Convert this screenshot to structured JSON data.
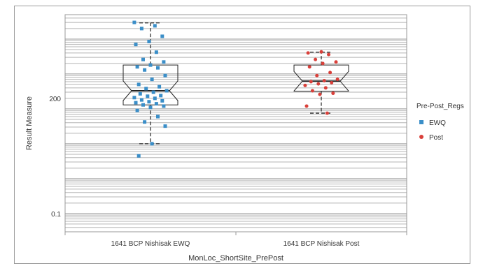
{
  "chart_data": {
    "type": "box",
    "xlabel": "MonLoc_ShortSite_PrePost",
    "ylabel": "Result Measure",
    "yscale": "log",
    "ylim": [
      0.03,
      50000
    ],
    "ytick_labels": [
      {
        "value": 0.1,
        "label": "0.1"
      },
      {
        "value": 200,
        "label": "200"
      }
    ],
    "categories": [
      "1641 BCP Nishisak EWQ",
      "1641 BCP Nishisak Post"
    ],
    "legend": {
      "title": "Pre-Post_Regs",
      "position": "right",
      "entries": [
        {
          "name": "EWQ",
          "marker": "square",
          "color": "#3a8ec8"
        },
        {
          "name": "Post",
          "marker": "circle",
          "color": "#d9403a"
        }
      ]
    },
    "boxes": [
      {
        "category": "1641 BCP Nishisak EWQ",
        "whisker_low": 10,
        "q1": 130,
        "median": 330,
        "q3": 1800,
        "whisker_high": 29000
      },
      {
        "category": "1641 BCP Nishisak Post",
        "whisker_low": 75,
        "q1": 320,
        "median": 620,
        "q3": 1800,
        "whisker_high": 4200
      }
    ],
    "series": [
      {
        "name": "EWQ",
        "color": "#3a8ec8",
        "category": "1641 BCP Nishisak EWQ",
        "values": [
          30000,
          24000,
          20000,
          12000,
          8500,
          7000,
          4200,
          2600,
          2200,
          1800,
          1600,
          1500,
          1300,
          900,
          700,
          500,
          430,
          380,
          330,
          300,
          270,
          240,
          230,
          210,
          200,
          180,
          170,
          160,
          150,
          140,
          130,
          120,
          110,
          90,
          60,
          42,
          32,
          10,
          4.5
        ]
      },
      {
        "name": "Post",
        "color": "#d9403a",
        "category": "1641 BCP Nishisak Post",
        "values": [
          4300,
          4000,
          3600,
          2600,
          2200,
          2000,
          1600,
          1100,
          900,
          700,
          640,
          600,
          560,
          520,
          470,
          400,
          330,
          280,
          260,
          120,
          75
        ]
      }
    ]
  }
}
